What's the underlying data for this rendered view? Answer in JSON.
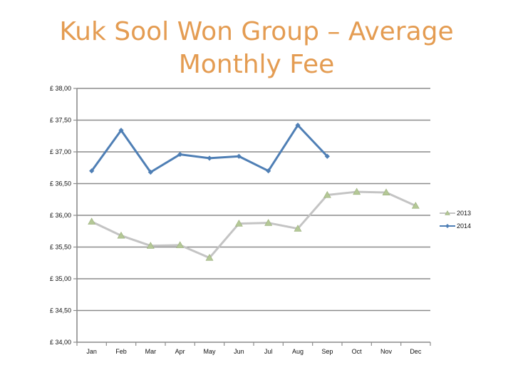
{
  "chart_data": {
    "type": "line",
    "title": "Kuk Sool Won Group – Average Monthly Fee",
    "xlabel": "",
    "ylabel": "",
    "categories": [
      "Jan",
      "Feb",
      "Mar",
      "Apr",
      "May",
      "Jun",
      "Jul",
      "Aug",
      "Sep",
      "Oct",
      "Nov",
      "Dec"
    ],
    "ylim": [
      34.0,
      38.0
    ],
    "yticks": [
      34.0,
      34.5,
      35.0,
      35.5,
      36.0,
      36.5,
      37.0,
      37.5,
      38.0
    ],
    "ytick_labels": [
      "£ 34,00",
      "£ 34,50",
      "£ 35,00",
      "£ 35,50",
      "£ 36,00",
      "£ 36,50",
      "£ 37,00",
      "£ 37,50",
      "£ 38,00"
    ],
    "grid": "horizontal",
    "legend_position": "right",
    "series": [
      {
        "name": "2013",
        "color": "#c4c4c4",
        "marker": "triangle",
        "values": [
          35.9,
          35.68,
          35.52,
          35.53,
          35.33,
          35.87,
          35.88,
          35.79,
          36.32,
          36.37,
          36.36,
          36.15
        ]
      },
      {
        "name": "2014",
        "color": "#4f7fb5",
        "marker": "diamond",
        "values": [
          36.7,
          37.34,
          36.68,
          36.96,
          36.9,
          36.93,
          36.7,
          37.42,
          36.93,
          null,
          null,
          null
        ]
      }
    ]
  }
}
